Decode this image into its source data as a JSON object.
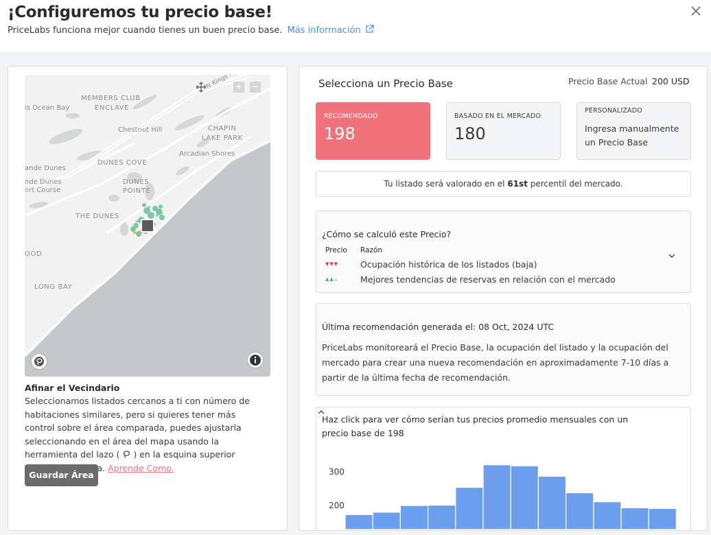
{
  "header": {
    "title": "¡Configuremos tu precio base!",
    "subtitle": "PriceLabs funciona mejor cuando tienes un buen precio base.",
    "link": "Más información"
  },
  "map": {
    "labels": {
      "highway": "N Kings Hwy",
      "members_club_1": "MEMBERS CLUB",
      "members_club_2": "ENCLAVE",
      "ocean_bay": "is Ocean Bay",
      "chestnut": "Chestnut Hill",
      "chapin_1": "CHAPIN",
      "chapin_2": "LAKE PARK",
      "arcadian": "Arcadian Shores",
      "dunes_cove": "DUNES COVE",
      "ande_dunes": "ande Dunes",
      "ande_dunes_2": "nde Dunes",
      "sort_course": "ort Course",
      "dunes_pointe_1": "DUNES",
      "dunes_pointe_2": "POINTE",
      "the_dunes": "THE DUNES",
      "ood": "OOD",
      "long_bay": "LONG BAY"
    }
  },
  "neighborhood": {
    "title": "Afinar el Vecindario",
    "text_before": "Seleccionamos listados cercanos a ti con número de habitaciones similares, pero si quieres tener más control sobre el área comparada, puedes ajustarla seleccionando en el área del mapa usando la herramienta del lazo (",
    "text_after": ") en la esquina superior derecha del mapa.",
    "learn_link": "Aprende Como.",
    "save_button": "Guardar Área"
  },
  "pricing": {
    "title": "Selecciona un Precio Base",
    "actual_label": "Precio Base Actual",
    "actual_value": "200 USD",
    "cards": {
      "recommended_label": "RECOMENDADO",
      "recommended_value": "198",
      "market_label": "BASADO EN EL MERCADO",
      "market_value": "180",
      "custom_label": "PERSONALIZADO",
      "custom_text": "Ingresa manualmente un Precio Base"
    },
    "percentile_before": "Tu listado será valorado en el",
    "percentile_value": "61st",
    "percentile_after": "percentil del mercado."
  },
  "calculation": {
    "title": "¿Cómo se calculó este Precio?",
    "col_price": "Precio",
    "col_reason": "Razón",
    "rows": [
      {
        "arrows": "▼▼▼",
        "reason": "Ocupación histórica de los listados (baja)"
      },
      {
        "arrows": "▲▲▲",
        "reason": "Mejores tendencias de reservas en relación con el mercado"
      }
    ]
  },
  "last_recommendation": {
    "title": "Última recomendación generada el: 08 Oct, 2024 UTC",
    "text": "PriceLabs monitoreará el Precio Base, la ocupación del listado y la ocupación del mercado para crear una nueva recomendación en aproximadamente 7-10 días a partir de la última fecha de recomendación."
  },
  "monthly": {
    "title": "Haz click para ver cómo serían tus precios promedio mensuales con un precio base de 198"
  },
  "colors": {
    "accent": "#f0727a",
    "link": "#4a90d9",
    "bar": "#6d9eeb",
    "arrow_down": "#d9363e",
    "arrow_up": "#3ab39a"
  },
  "chart_data": {
    "type": "bar",
    "xlabel": "",
    "ylabel": "",
    "ylim": [
      150,
      320
    ],
    "yticks": [
      200,
      300
    ],
    "values": [
      173,
      180,
      200,
      201,
      254,
      321,
      318,
      287,
      238,
      211,
      193,
      191
    ]
  }
}
